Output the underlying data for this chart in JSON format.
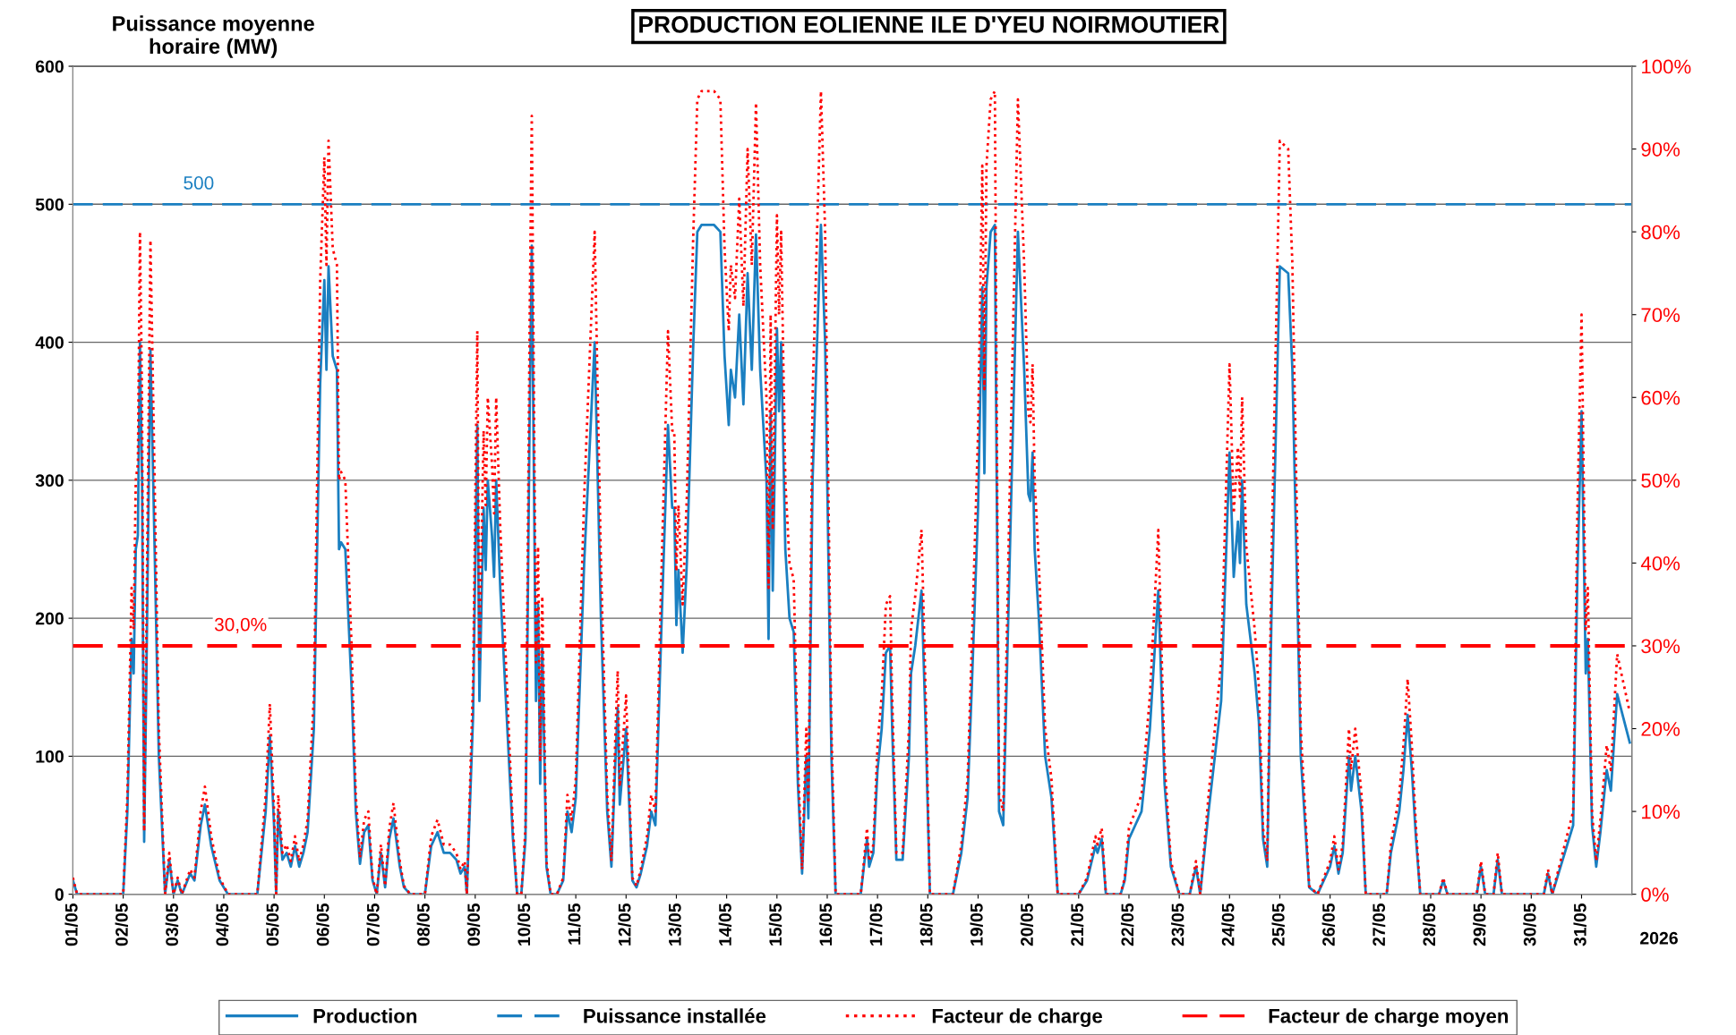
{
  "chart_data": {
    "type": "line",
    "title": "PRODUCTION EOLIENNE ILE D'YEU NOIRMOUTIER",
    "ylabel": "Puissance moyenne\nhoraire (MW)",
    "xlabel": "2026",
    "x": [
      "2026-05-01T00:00",
      "2026-05-01T02:00",
      "2026-05-02T00:00",
      "2026-05-02T02:00",
      "2026-05-02T04:00",
      "2026-05-02T05:00",
      "2026-05-02T06:00",
      "2026-05-02T07:00",
      "2026-05-02T08:00",
      "2026-05-02T09:00",
      "2026-05-02T10:00",
      "2026-05-02T11:00",
      "2026-05-02T13:00",
      "2026-05-02T15:00",
      "2026-05-02T17:00",
      "2026-05-02T20:00",
      "2026-05-02T22:00",
      "2026-05-03T00:00",
      "2026-05-03T02:00",
      "2026-05-03T04:00",
      "2026-05-03T08:00",
      "2026-05-03T10:00",
      "2026-05-03T13:00",
      "2026-05-03T15:00",
      "2026-05-03T18:00",
      "2026-05-03T22:00",
      "2026-05-04T02:00",
      "2026-05-04T16:00",
      "2026-05-04T20:00",
      "2026-05-04T22:00",
      "2026-05-05T00:00",
      "2026-05-05T01:00",
      "2026-05-05T02:00",
      "2026-05-05T04:00",
      "2026-05-05T06:00",
      "2026-05-05T08:00",
      "2026-05-05T10:00",
      "2026-05-05T12:00",
      "2026-05-05T14:00",
      "2026-05-05T16:00",
      "2026-05-05T19:00",
      "2026-05-05T22:00",
      "2026-05-06T00:00",
      "2026-05-06T01:00",
      "2026-05-06T02:00",
      "2026-05-06T04:00",
      "2026-05-06T06:00",
      "2026-05-06T07:00",
      "2026-05-06T08:00",
      "2026-05-06T10:00",
      "2026-05-06T13:00",
      "2026-05-06T15:00",
      "2026-05-06T17:00",
      "2026-05-06T19:00",
      "2026-05-06T21:00",
      "2026-05-06T23:00",
      "2026-05-07T01:00",
      "2026-05-07T03:00",
      "2026-05-07T05:00",
      "2026-05-07T07:00",
      "2026-05-07T09:00",
      "2026-05-07T12:00",
      "2026-05-07T14:00",
      "2026-05-07T17:00",
      "2026-05-08T00:00",
      "2026-05-08T03:00",
      "2026-05-08T06:00",
      "2026-05-08T09:00",
      "2026-05-08T12:00",
      "2026-05-08T15:00",
      "2026-05-08T17:00",
      "2026-05-08T19:00",
      "2026-05-08T20:00",
      "2026-05-08T23:00",
      "2026-05-09T01:00",
      "2026-05-09T02:00",
      "2026-05-09T04:00",
      "2026-05-09T05:00",
      "2026-05-09T06:00",
      "2026-05-09T08:00",
      "2026-05-09T09:00",
      "2026-05-09T10:00",
      "2026-05-09T12:00",
      "2026-05-09T15:00",
      "2026-05-09T18:00",
      "2026-05-09T20:00",
      "2026-05-09T22:00",
      "2026-05-10T00:00",
      "2026-05-10T02:00",
      "2026-05-10T03:00",
      "2026-05-10T05:00",
      "2026-05-10T06:00",
      "2026-05-10T07:00",
      "2026-05-10T08:00",
      "2026-05-10T10:00",
      "2026-05-10T12:00",
      "2026-05-10T15:00",
      "2026-05-10T18:00",
      "2026-05-10T20:00",
      "2026-05-10T22:00",
      "2026-05-11T00:00",
      "2026-05-11T04:00",
      "2026-05-11T09:00",
      "2026-05-11T12:00",
      "2026-05-11T15:00",
      "2026-05-11T17:00",
      "2026-05-11T19:00",
      "2026-05-11T20:00",
      "2026-05-11T21:00",
      "2026-05-12T00:00",
      "2026-05-12T03:00",
      "2026-05-12T05:00",
      "2026-05-12T07:00",
      "2026-05-12T10:00",
      "2026-05-12T12:00",
      "2026-05-12T14:00",
      "2026-05-12T17:00",
      "2026-05-12T20:00",
      "2026-05-12T22:00",
      "2026-05-12T23:00",
      "2026-05-13T00:00",
      "2026-05-13T01:00",
      "2026-05-13T03:00",
      "2026-05-13T05:00",
      "2026-05-13T08:00",
      "2026-05-13T10:00",
      "2026-05-13T12:00",
      "2026-05-13T18:00",
      "2026-05-13T21:00",
      "2026-05-13T23:00",
      "2026-05-14T01:00",
      "2026-05-14T02:00",
      "2026-05-14T04:00",
      "2026-05-14T06:00",
      "2026-05-14T08:00",
      "2026-05-14T10:00",
      "2026-05-14T12:00",
      "2026-05-14T14:00",
      "2026-05-14T16:00",
      "2026-05-14T19:00",
      "2026-05-14T20:00",
      "2026-05-14T21:00",
      "2026-05-14T22:00",
      "2026-05-15T00:00",
      "2026-05-15T01:00",
      "2026-05-15T02:00",
      "2026-05-15T04:00",
      "2026-05-15T06:00",
      "2026-05-15T08:00",
      "2026-05-15T10:00",
      "2026-05-15T12:00",
      "2026-05-15T14:00",
      "2026-05-15T15:00",
      "2026-05-15T17:00",
      "2026-05-15T21:00",
      "2026-05-15T23:00",
      "2026-05-16T02:00",
      "2026-05-16T04:00",
      "2026-05-16T16:00",
      "2026-05-16T19:00",
      "2026-05-16T20:00",
      "2026-05-16T22:00",
      "2026-05-17T00:00",
      "2026-05-17T02:00",
      "2026-05-17T04:00",
      "2026-05-17T06:00",
      "2026-05-17T07:00",
      "2026-05-17T09:00",
      "2026-05-17T12:00",
      "2026-05-17T15:00",
      "2026-05-17T16:00",
      "2026-05-17T18:00",
      "2026-05-17T21:00",
      "2026-05-17T23:00",
      "2026-05-18T01:00",
      "2026-05-18T12:00",
      "2026-05-18T16:00",
      "2026-05-18T19:00",
      "2026-05-18T21:00",
      "2026-05-19T00:00",
      "2026-05-19T02:00",
      "2026-05-19T03:00",
      "2026-05-19T04:00",
      "2026-05-19T06:00",
      "2026-05-19T08:00",
      "2026-05-19T10:00",
      "2026-05-19T12:00",
      "2026-05-19T16:00",
      "2026-05-19T19:00",
      "2026-05-19T22:00",
      "2026-05-20T00:00",
      "2026-05-20T01:00",
      "2026-05-20T02:00",
      "2026-05-20T03:00",
      "2026-05-20T05:00",
      "2026-05-20T08:00",
      "2026-05-20T11:00",
      "2026-05-20T14:00",
      "2026-05-21T00:00",
      "2026-05-21T04:00",
      "2026-05-21T08:00",
      "2026-05-21T09:00",
      "2026-05-21T11:00",
      "2026-05-21T13:00",
      "2026-05-21T20:00",
      "2026-05-21T22:00",
      "2026-05-22T00:00",
      "2026-05-22T03:00",
      "2026-05-22T06:00",
      "2026-05-22T10:00",
      "2026-05-22T14:00",
      "2026-05-22T17:00",
      "2026-05-22T20:00",
      "2026-05-23T00:00",
      "2026-05-23T05:00",
      "2026-05-23T08:00",
      "2026-05-23T10:00",
      "2026-05-23T14:00",
      "2026-05-23T20:00",
      "2026-05-24T00:00",
      "2026-05-24T02:00",
      "2026-05-24T04:00",
      "2026-05-24T05:00",
      "2026-05-24T06:00",
      "2026-05-24T08:00",
      "2026-05-24T12:00",
      "2026-05-24T14:00",
      "2026-05-24T16:00",
      "2026-05-24T18:00",
      "2026-05-24T20:00",
      "2026-05-25T00:00",
      "2026-05-25T04:00",
      "2026-05-25T06:00",
      "2026-05-25T10:00",
      "2026-05-25T14:00",
      "2026-05-25T18:00",
      "2026-05-26T00:00",
      "2026-05-26T02:00",
      "2026-05-26T04:00",
      "2026-05-26T06:00",
      "2026-05-26T09:00",
      "2026-05-26T10:00",
      "2026-05-26T12:00",
      "2026-05-26T15:00",
      "2026-05-26T17:00",
      "2026-05-27T03:00",
      "2026-05-27T05:00",
      "2026-05-27T09:00",
      "2026-05-27T11:00",
      "2026-05-27T13:00",
      "2026-05-27T15:00",
      "2026-05-27T17:00",
      "2026-05-27T19:00",
      "2026-05-28T04:00",
      "2026-05-28T06:00",
      "2026-05-28T08:00",
      "2026-05-28T22:00",
      "2026-05-29T00:00",
      "2026-05-29T02:00",
      "2026-05-29T06:00",
      "2026-05-29T08:00",
      "2026-05-29T10:00",
      "2026-05-30T06:00",
      "2026-05-30T08:00",
      "2026-05-30T10:00",
      "2026-05-30T20:00",
      "2026-05-30T22:00",
      "2026-05-31T00:00",
      "2026-05-31T02:00",
      "2026-05-31T03:00",
      "2026-05-31T05:00",
      "2026-05-31T07:00",
      "2026-05-31T09:00",
      "2026-05-31T12:00",
      "2026-05-31T14:00",
      "2026-05-31T17:00",
      "2026-05-31T23:00"
    ],
    "series": [
      {
        "name": "Production",
        "color": "#1a7fc1",
        "line_style": "solid",
        "values": [
          10,
          0,
          0,
          60,
          185,
          160,
          250,
          260,
          400,
          300,
          38,
          150,
          395,
          250,
          100,
          0,
          25,
          0,
          10,
          0,
          15,
          10,
          50,
          65,
          35,
          10,
          0,
          0,
          60,
          115,
          50,
          0,
          60,
          25,
          30,
          20,
          35,
          20,
          30,
          45,
          120,
          370,
          445,
          380,
          455,
          390,
          380,
          250,
          255,
          250,
          150,
          60,
          22,
          45,
          50,
          10,
          0,
          30,
          5,
          40,
          55,
          20,
          5,
          0,
          0,
          35,
          45,
          30,
          30,
          25,
          15,
          20,
          0,
          130,
          340,
          140,
          280,
          235,
          300,
          260,
          230,
          300,
          220,
          130,
          40,
          0,
          0,
          40,
          350,
          470,
          140,
          210,
          80,
          180,
          20,
          0,
          0,
          10,
          60,
          45,
          70,
          240,
          400,
          200,
          60,
          20,
          100,
          135,
          65,
          120,
          10,
          5,
          15,
          35,
          60,
          50,
          200,
          340,
          280,
          280,
          195,
          235,
          175,
          240,
          395,
          480,
          485,
          485,
          480,
          390,
          340,
          380,
          360,
          420,
          355,
          450,
          380,
          478,
          380,
          300,
          185,
          350,
          220,
          410,
          350,
          400,
          250,
          200,
          190,
          80,
          15,
          100,
          55,
          300,
          485,
          400,
          100,
          0,
          0,
          40,
          20,
          30,
          90,
          120,
          175,
          180,
          120,
          25,
          25,
          100,
          160,
          180,
          220,
          120,
          0,
          0,
          30,
          70,
          150,
          280,
          440,
          305,
          440,
          480,
          485,
          60,
          50,
          300,
          480,
          380,
          290,
          285,
          320,
          250,
          200,
          100,
          70,
          0,
          0,
          10,
          35,
          30,
          40,
          0,
          0,
          10,
          40,
          50,
          60,
          120,
          220,
          80,
          20,
          0,
          0,
          20,
          0,
          60,
          140,
          320,
          230,
          270,
          240,
          300,
          210,
          160,
          125,
          40,
          20,
          200,
          455,
          450,
          380,
          100,
          5,
          0,
          20,
          35,
          15,
          30,
          100,
          75,
          100,
          60,
          0,
          0,
          30,
          60,
          90,
          130,
          90,
          40,
          0,
          0,
          10,
          0,
          0,
          20,
          0,
          0,
          25,
          0,
          0,
          15,
          0,
          50,
          230,
          350,
          160,
          185,
          50,
          20,
          45,
          90,
          75,
          145,
          110
        ]
      },
      {
        "name": "Puissance installée",
        "color": "#1a7fc1",
        "line_style": "dashed",
        "x": [
          "2026-05-01T00:00",
          "2026-06-01T00:00"
        ],
        "values": [
          500,
          500
        ]
      },
      {
        "name": "Facteur de charge",
        "color": "#ff0000",
        "line_style": "dotted",
        "axis": "y2",
        "values": [
          2,
          0,
          0,
          12,
          37,
          32,
          50,
          52,
          80,
          60,
          7.6,
          30,
          79,
          50,
          20,
          0,
          5,
          0,
          2,
          0,
          3,
          2,
          10,
          13,
          7,
          2,
          0,
          0,
          12,
          23,
          10,
          0,
          12,
          5,
          6,
          4,
          7,
          4,
          6,
          9,
          24,
          74,
          89,
          76,
          91,
          78,
          76,
          50,
          51,
          50,
          30,
          12,
          4.4,
          9,
          10,
          2,
          0,
          6,
          1,
          8,
          11,
          4,
          1,
          0,
          0,
          7,
          9,
          6,
          6,
          5,
          3,
          4,
          0,
          26,
          68,
          28,
          56,
          47,
          60,
          52,
          46,
          60,
          44,
          26,
          8,
          0,
          0,
          8,
          70,
          94,
          28,
          42,
          16,
          36,
          4,
          0,
          0,
          2,
          12,
          9,
          14,
          48,
          80,
          40,
          12,
          4,
          20,
          27,
          13,
          24,
          2,
          1,
          3,
          7,
          12,
          10,
          40,
          68,
          56,
          56,
          39,
          47,
          35,
          48,
          79,
          96,
          97,
          97,
          96,
          78,
          68,
          76,
          72,
          84,
          71,
          90,
          76,
          95.6,
          76,
          60,
          37,
          70,
          44,
          82,
          70,
          80,
          50,
          40,
          38,
          16,
          3,
          20,
          11,
          60,
          97,
          80,
          20,
          0,
          0,
          8,
          4,
          6,
          18,
          24,
          35,
          36,
          24,
          5,
          5,
          20,
          32,
          36,
          44,
          24,
          0,
          0,
          6,
          14,
          30,
          56,
          88,
          61,
          88,
          96,
          97,
          12,
          10,
          60,
          96,
          76,
          58,
          57,
          64,
          50,
          40,
          20,
          14,
          0,
          0,
          2,
          7,
          6,
          8,
          0,
          0,
          2,
          8,
          10,
          12,
          24,
          44,
          16,
          4,
          0,
          0,
          4,
          0,
          12,
          28,
          64,
          46,
          54,
          48,
          60,
          42,
          32,
          25,
          8,
          4,
          40,
          91,
          90,
          76,
          20,
          1,
          0,
          4,
          7,
          3,
          6,
          20,
          15,
          20,
          12,
          0,
          0,
          6,
          12,
          18,
          26,
          18,
          8,
          0,
          0,
          2,
          0,
          0,
          4,
          0,
          0,
          5,
          0,
          0,
          3,
          0,
          10,
          46,
          70,
          32,
          37,
          10,
          4,
          9,
          18,
          15,
          29,
          22
        ]
      },
      {
        "name": "Facteur de charge moyen",
        "color": "#ff0000",
        "line_style": "dashed",
        "axis": "y2",
        "x": [
          "2026-05-01T00:00",
          "2026-06-01T00:00"
        ],
        "values": [
          30,
          30
        ]
      }
    ],
    "annotations": [
      {
        "text": "500",
        "x": "2026-05-03T12:00",
        "y": 500
      },
      {
        "text": "30,0%",
        "x": "2026-05-04T08:00",
        "y": 180
      }
    ],
    "xlim": [
      "2026-05-01T00:00",
      "2026-06-01T00:00"
    ],
    "xticks": [
      {
        "value": "2026-05-01",
        "label": "01/05"
      },
      {
        "value": "2026-05-02",
        "label": "02/05"
      },
      {
        "value": "2026-05-03",
        "label": "03/05"
      },
      {
        "value": "2026-05-04",
        "label": "04/05"
      },
      {
        "value": "2026-05-05",
        "label": "05/05"
      },
      {
        "value": "2026-05-06",
        "label": "06/05"
      },
      {
        "value": "2026-05-07",
        "label": "07/05"
      },
      {
        "value": "2026-05-08",
        "label": "08/05"
      },
      {
        "value": "2026-05-09",
        "label": "09/05"
      },
      {
        "value": "2026-05-10",
        "label": "10/05"
      },
      {
        "value": "2026-05-11",
        "label": "11/05"
      },
      {
        "value": "2026-05-12",
        "label": "12/05"
      },
      {
        "value": "2026-05-13",
        "label": "13/05"
      },
      {
        "value": "2026-05-14",
        "label": "14/05"
      },
      {
        "value": "2026-05-15",
        "label": "15/05"
      },
      {
        "value": "2026-05-16",
        "label": "16/05"
      },
      {
        "value": "2026-05-17",
        "label": "17/05"
      },
      {
        "value": "2026-05-18",
        "label": "18/05"
      },
      {
        "value": "2026-05-19",
        "label": "19/05"
      },
      {
        "value": "2026-05-20",
        "label": "20/05"
      },
      {
        "value": "2026-05-21",
        "label": "21/05"
      },
      {
        "value": "2026-05-22",
        "label": "22/05"
      },
      {
        "value": "2026-05-23",
        "label": "23/05"
      },
      {
        "value": "2026-05-24",
        "label": "24/05"
      },
      {
        "value": "2026-05-25",
        "label": "25/05"
      },
      {
        "value": "2026-05-26",
        "label": "26/05"
      },
      {
        "value": "2026-05-27",
        "label": "27/05"
      },
      {
        "value": "2026-05-28",
        "label": "28/05"
      },
      {
        "value": "2026-05-29",
        "label": "29/05"
      },
      {
        "value": "2026-05-30",
        "label": "30/05"
      },
      {
        "value": "2026-05-31",
        "label": "31/05"
      }
    ],
    "ylim": [
      0,
      600
    ],
    "yticks": [
      0,
      100,
      200,
      300,
      400,
      500,
      600
    ],
    "y2lim": [
      0,
      100
    ],
    "y2ticks": [
      {
        "value": 0,
        "label": "0%"
      },
      {
        "value": 10,
        "label": "10%"
      },
      {
        "value": 20,
        "label": "20%"
      },
      {
        "value": 30,
        "label": "30%"
      },
      {
        "value": 40,
        "label": "40%"
      },
      {
        "value": 50,
        "label": "50%"
      },
      {
        "value": 60,
        "label": "60%"
      },
      {
        "value": 70,
        "label": "70%"
      },
      {
        "value": 80,
        "label": "80%"
      },
      {
        "value": 90,
        "label": "90%"
      },
      {
        "value": 100,
        "label": "100%"
      }
    ],
    "grid": "y",
    "legend": "bottom"
  }
}
